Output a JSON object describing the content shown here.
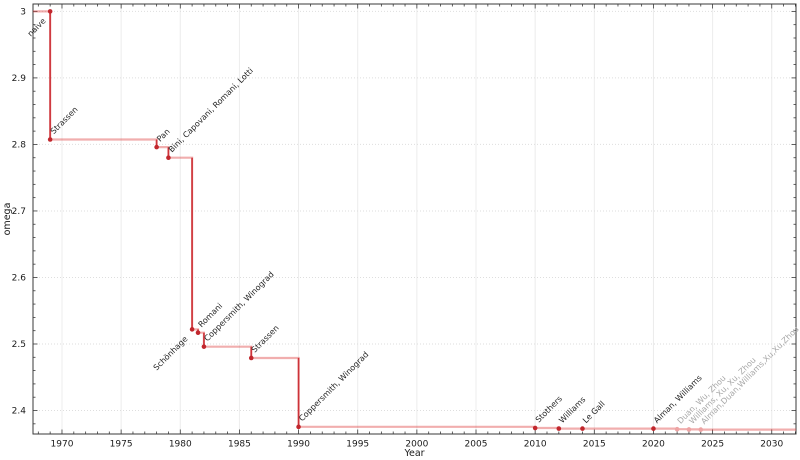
{
  "chart_data": {
    "type": "line",
    "subtype": "step-post",
    "title": "",
    "xlabel": "Year",
    "ylabel": "omega",
    "xlim": [
      1967.55,
      2032.05
    ],
    "ylim": [
      2.3647,
      3.0111
    ],
    "grid": {
      "vertical": "solid",
      "horizontal": "dotted"
    },
    "legend": "none",
    "xticks": [
      1970,
      1975,
      1980,
      1985,
      1990,
      1995,
      2000,
      2005,
      2010,
      2015,
      2020,
      2025,
      2030
    ],
    "xtick_labels": [
      "1970",
      "1975",
      "1980",
      "1985",
      "1990",
      "1995",
      "2000",
      "2005",
      "2010",
      "2015",
      "2020",
      "2025",
      "2030"
    ],
    "xtick_minor_step": 1,
    "yticks": [
      2.4,
      2.5,
      2.6,
      2.7,
      2.8,
      2.9,
      3.0
    ],
    "ytick_labels": [
      "2.4",
      "2.5",
      "2.6",
      "2.7",
      "2.8",
      "2.9",
      "3"
    ],
    "ytick_minor_step": 0.02,
    "points": [
      {
        "year": 1969,
        "omega": 3.0,
        "label": "naive",
        "label_side": "below",
        "faded": false
      },
      {
        "year": 1969,
        "omega": 2.8074,
        "label": "Strassen",
        "label_side": "above",
        "faded": false
      },
      {
        "year": 1978,
        "omega": 2.796,
        "label": "Pan",
        "label_side": "above",
        "faded": false
      },
      {
        "year": 1979,
        "omega": 2.78,
        "label": "Bini, Capovani, Romani, Lotti",
        "label_side": "above",
        "faded": false
      },
      {
        "year": 1981,
        "omega": 2.522,
        "label": "Schönhage",
        "label_side": "below",
        "faded": false
      },
      {
        "year": 1981.5,
        "omega": 2.517,
        "label": "Romani",
        "label_side": "above",
        "faded": false
      },
      {
        "year": 1982,
        "omega": 2.496,
        "label": "Coppersmith, Winograd",
        "label_side": "above",
        "faded": false
      },
      {
        "year": 1986,
        "omega": 2.479,
        "label": "Strassen",
        "label_side": "above",
        "faded": false
      },
      {
        "year": 1990,
        "omega": 2.3755,
        "label": "Coppersmith, Winograd",
        "label_side": "above",
        "faded": false
      },
      {
        "year": 2010,
        "omega": 2.3737,
        "label": "Stothers",
        "label_side": "above",
        "faded": false
      },
      {
        "year": 2012,
        "omega": 2.372873,
        "label": "Williams",
        "label_side": "above",
        "faded": false
      },
      {
        "year": 2014,
        "omega": 2.372864,
        "label": "Le Gall",
        "label_side": "above",
        "faded": false
      },
      {
        "year": 2020,
        "omega": 2.37286,
        "label": "Alman, Williams",
        "label_side": "above",
        "faded": false
      },
      {
        "year": 2022,
        "omega": 2.371866,
        "label": "Duan, Wu, Zhou",
        "label_side": "above",
        "faded": true
      },
      {
        "year": 2023,
        "omega": 2.371552,
        "label": "Williams, Xu, Xu, Zhou",
        "label_side": "above",
        "faded": true
      },
      {
        "year": 2024,
        "omega": 2.371339,
        "label": "Alman,Duan,Williams,Xu,Xu,Zhou",
        "label_side": "above",
        "faded": true
      }
    ],
    "colors": {
      "line": "#de3f3f",
      "line_alpha": 0.42,
      "drop_line": "#c8232a",
      "drop_alpha": 0.88,
      "marker": "#c1272d",
      "marker_faded": "#eda4a4",
      "label": "#262626",
      "label_faded": "#a8a8a8",
      "grid_vertical": "#ececec",
      "grid_horizontal": "#dedede",
      "spine": "#3a3a3a",
      "tick": "#3a3a3a",
      "tick_text": "#1a1a1a"
    }
  }
}
